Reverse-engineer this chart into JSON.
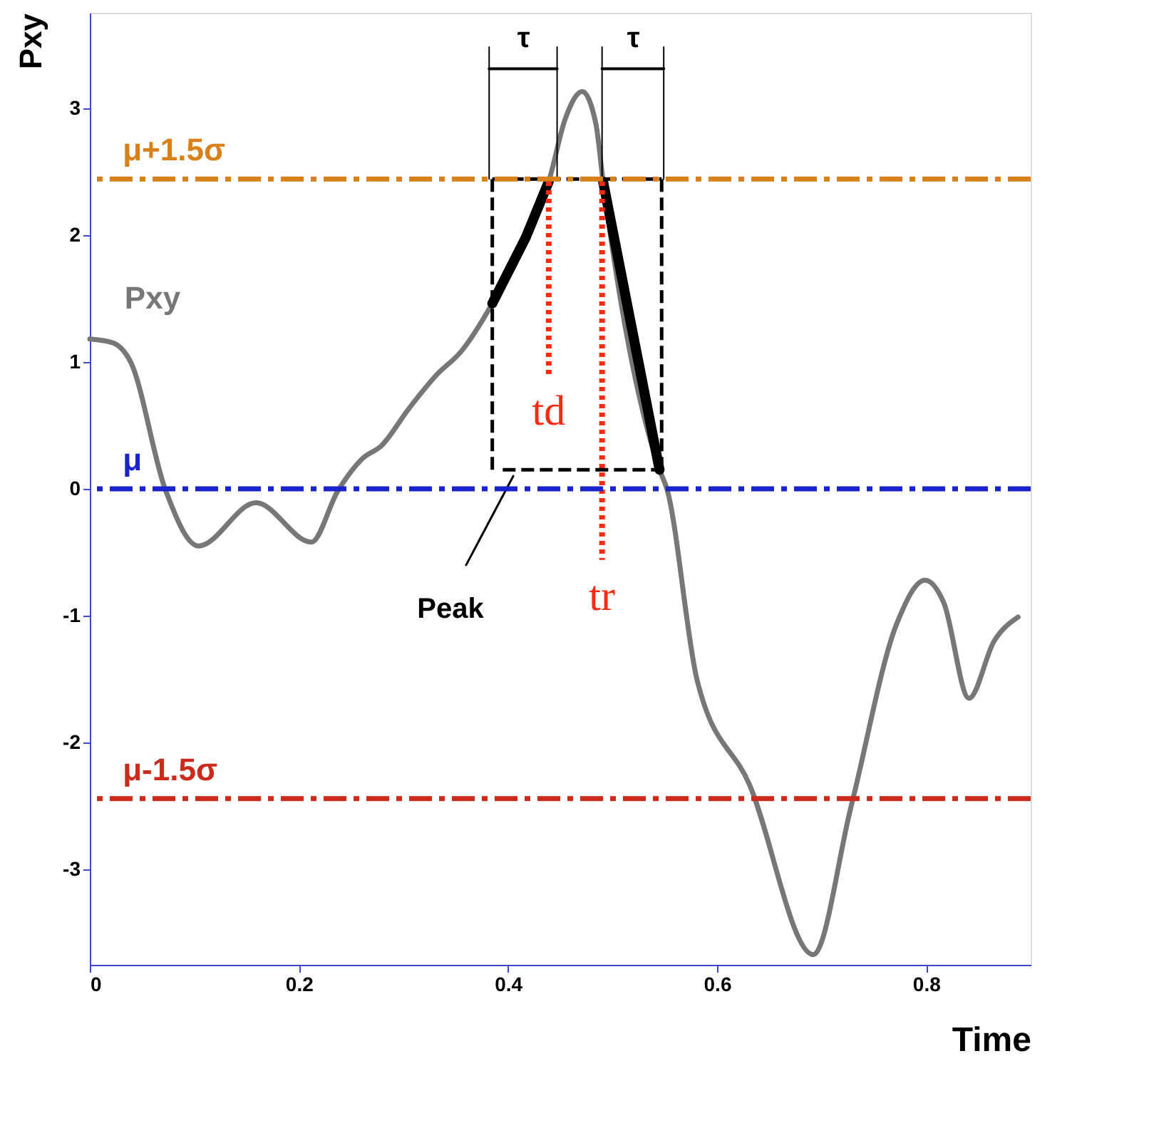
{
  "chart_data": {
    "type": "line",
    "xlabel": "Time",
    "ylabel": "Pxy",
    "xlim": [
      0,
      0.9
    ],
    "ylim": [
      -3.75,
      3.75
    ],
    "xticks": [
      0,
      0.2,
      0.4,
      0.6,
      0.8
    ],
    "yticks": [
      -3,
      -2,
      -1,
      0,
      1,
      2,
      3
    ],
    "grid": false,
    "marker": "none",
    "series": [
      {
        "color": "#777777",
        "line_style": "solid",
        "x": [
          0,
          0.022,
          0.039,
          0.072,
          0.104,
          0.159,
          0.212,
          0.237,
          0.261,
          0.279,
          0.305,
          0.332,
          0.355,
          0.385,
          0.417,
          0.439,
          0.455,
          0.471,
          0.484,
          0.491,
          0.545,
          0.552,
          0.581,
          0.631,
          0.692,
          0.728,
          0.772,
          0.799,
          0.817,
          0.841,
          0.865,
          0.888
        ],
        "values": [
          1.18,
          1.15,
          1.0,
          0.0,
          -0.45,
          -0.11,
          -0.42,
          -0.02,
          0.24,
          0.34,
          0.63,
          0.9,
          1.08,
          1.46,
          1.98,
          2.42,
          2.92,
          3.13,
          2.88,
          2.42,
          0.15,
          0.0,
          -1.51,
          -2.33,
          -3.67,
          -2.51,
          -1.06,
          -0.72,
          -0.9,
          -1.65,
          -1.2,
          -1.01
        ]
      },
      {
        "color": "#000000",
        "line_style": "solid",
        "x": [
          0.385,
          0.417,
          0.439,
          0.465,
          0.491,
          0.545
        ],
        "values": [
          1.46,
          1.98,
          2.42,
          null,
          2.42,
          0.15
        ]
      },
      {
        "color": "#000000",
        "line_style": "dashed",
        "x": [
          0.385,
          0.385
        ],
        "values": [
          2.44,
          0.15
        ]
      },
      {
        "color": "#ff2a10",
        "line_style": "dotted",
        "x": [
          0.439,
          0.439
        ],
        "values": [
          2.42,
          0.9
        ]
      },
      {
        "color": "#ff2a10",
        "line_style": "dotted",
        "x": [
          0.49,
          0.49
        ],
        "values": [
          2.42,
          -0.56
        ]
      },
      {
        "color": "#000000",
        "line_style": "solid",
        "x": [
          0.382,
          0.382
        ],
        "values": [
          2.44,
          3.48
        ]
      },
      {
        "color": "#000000",
        "line_style": "solid",
        "x": [
          0.447,
          0.447
        ],
        "values": [
          2.44,
          3.48
        ]
      },
      {
        "color": "#000000",
        "line_style": "solid",
        "x": [
          0.36,
          0.405
        ],
        "values": [
          -0.6,
          0.1
        ]
      },
      {
        "color": "#000000",
        "line_style": "dashed",
        "x": [
          0.395,
          0.547
        ],
        "values": [
          0.15,
          0.15
        ]
      },
      {
        "color": "#000000",
        "line_style": "dashed",
        "x": [
          0.547,
          0.547
        ],
        "values": [
          0.15,
          2.44
        ]
      },
      {
        "color": "#000000",
        "line_style": "dashed",
        "x": [
          0.385,
          0.547
        ],
        "values": [
          2.44,
          2.44
        ]
      },
      {
        "color": "#000000",
        "line_style": "solid",
        "x": [
          0.49,
          0.49
        ],
        "values": [
          2.44,
          3.48
        ]
      },
      {
        "color": "#000000",
        "line_style": "solid",
        "x": [
          0.549,
          0.549
        ],
        "values": [
          2.44,
          3.48
        ]
      },
      {
        "color": "#000000",
        "line_style": "solid",
        "x": [
          0.382,
          0.447
        ],
        "values": [
          3.31,
          3.31
        ]
      },
      {
        "color": "#000000",
        "line_style": "solid",
        "x": [
          0.49,
          0.549
        ],
        "values": [
          3.31,
          3.31
        ]
      }
    ],
    "ref_lines": [
      {
        "axis": "y",
        "value": 2.44,
        "label": "μ+1.5σ",
        "color": "#d98019",
        "line_style": "dashed"
      },
      {
        "axis": "y",
        "value": 0,
        "label": "μ",
        "color": "#1a22cc",
        "line_style": "dashed"
      },
      {
        "axis": "y",
        "value": -2.44,
        "label": "μ-1.5σ",
        "color": "#cc2a1a",
        "line_style": "dashed"
      }
    ],
    "annotations": [
      "Pxy",
      "τ",
      "τ",
      {
        "text": "td",
        "x": 0.439,
        "y": 0.9
      },
      {
        "text": "tr",
        "x": 0.49,
        "y": -0.56
      },
      "Peak"
    ]
  }
}
